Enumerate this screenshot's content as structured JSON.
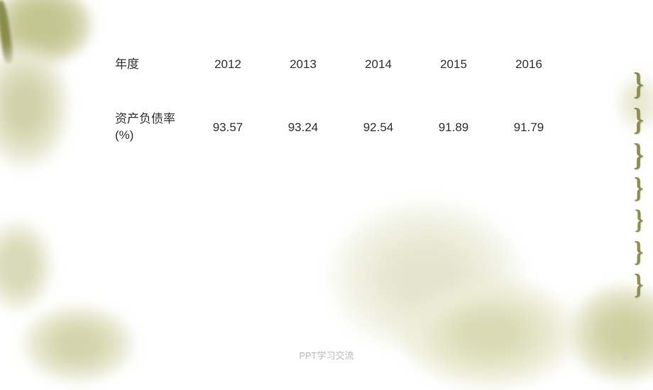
{
  "table": {
    "type": "table",
    "background_color": "#ffffff",
    "text_color": "#333333",
    "header_fontsize": 17,
    "cell_fontsize": 17,
    "label_header": "年度",
    "years": [
      "2012",
      "2013",
      "2014",
      "2015",
      "2016"
    ],
    "row_label": "资产负债率(%)",
    "values": [
      "93.57",
      "93.24",
      "92.54",
      "91.89",
      "91.79"
    ]
  },
  "decor": {
    "accent_olive": "#8d8e4f",
    "wash_light": "#e4e5cc",
    "wash_mid": "#d0d1a8",
    "curl_glyph": "}"
  },
  "footer": {
    "text": "PPT学习交流",
    "color": "#b9b9b9",
    "fontsize": 13
  },
  "page_number": "4"
}
